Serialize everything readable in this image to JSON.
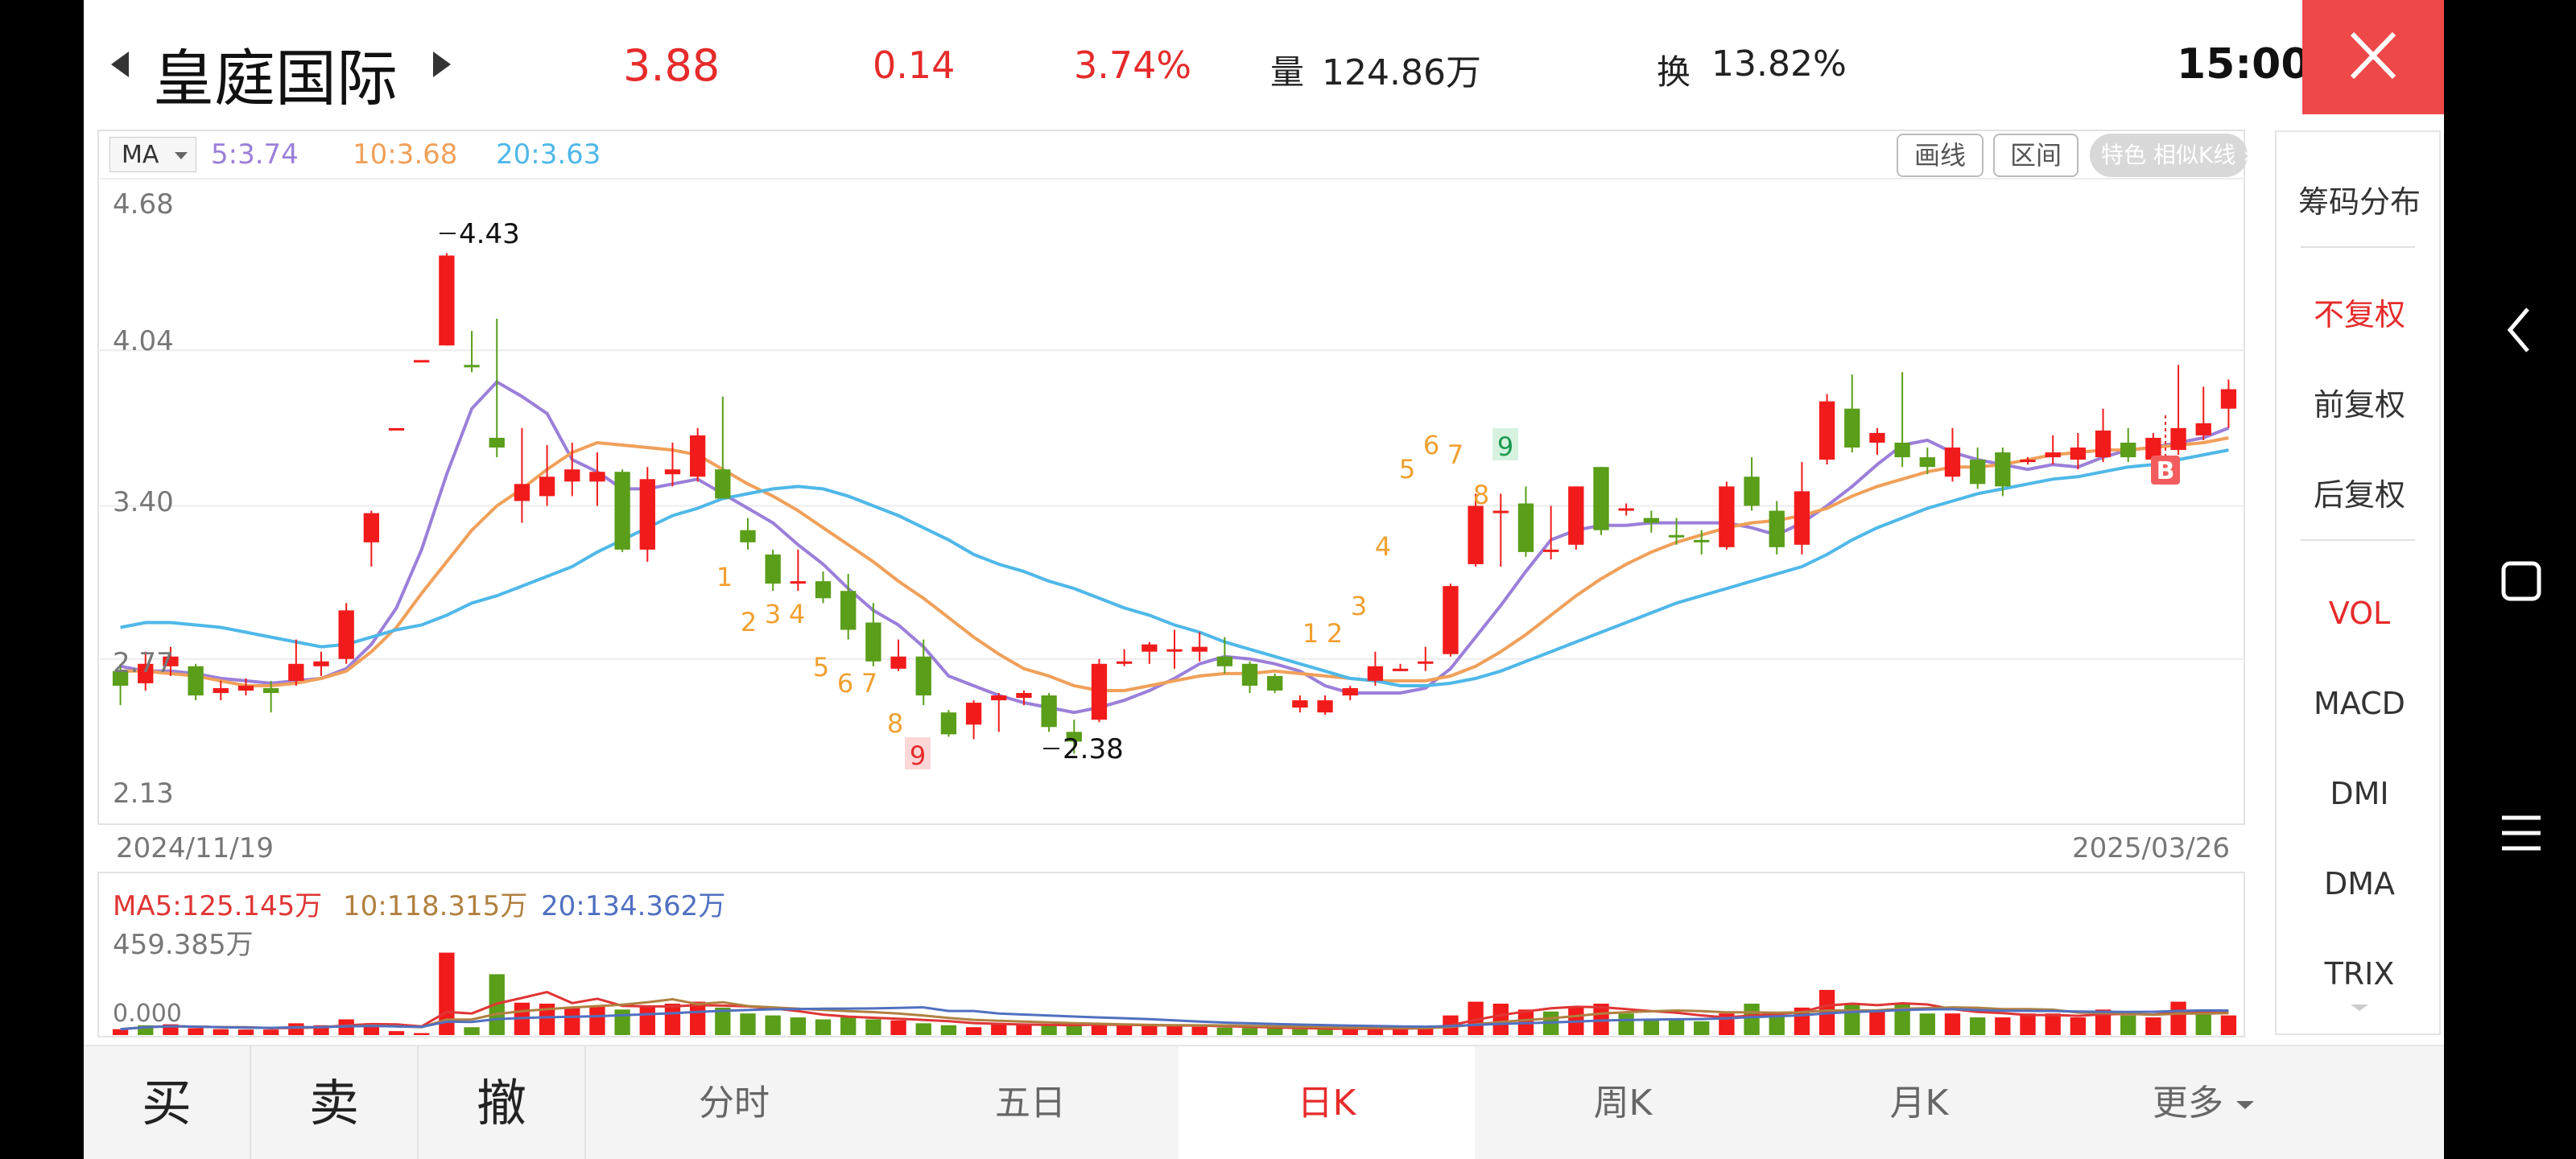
{
  "header": {
    "stock_name": "皇庭国际",
    "price": "3.88",
    "change": "0.14",
    "change_pct": "3.74%",
    "volume_label": "量",
    "volume_value": "124.86万",
    "turnover_label": "换",
    "turnover_value": "13.82%",
    "time": "15:00"
  },
  "toolbar": {
    "ma_toggle": "MA",
    "ma5": "5:3.74",
    "ma10": "10:3.68",
    "ma20": "20:3.63",
    "draw_line": "画线",
    "range": "区间",
    "special": "特色  相似K线 ›"
  },
  "price_axis": {
    "labels": [
      "4.68",
      "4.04",
      "3.40",
      "2.77",
      "2.13"
    ],
    "start_date": "2024/11/19",
    "end_date": "2025/03/26",
    "high_label": "4.43",
    "low_label": "2.38"
  },
  "volume": {
    "ma5": "MA5:125.145万",
    "ma10": "10:118.315万",
    "ma20": "20:134.362万",
    "max_label": "459.385万",
    "zero_label": "0.000"
  },
  "signals": {
    "marker_b": "B",
    "seq_numbers": [
      "1",
      "2",
      "3",
      "4",
      "5",
      "6",
      "7",
      "8",
      "9",
      "1",
      "2",
      "3",
      "4",
      "5",
      "6",
      "7",
      "8",
      "9"
    ]
  },
  "sidebar": {
    "items": [
      "筹码分布",
      "不复权",
      "前复权",
      "后复权",
      "VOL",
      "MACD",
      "DMI",
      "DMA",
      "TRIX"
    ]
  },
  "bottom_nav": {
    "buy": "买",
    "sell": "卖",
    "cancel": "撤",
    "tabs": [
      "分时",
      "五日",
      "日K",
      "周K",
      "月K",
      "更多"
    ]
  },
  "colors": {
    "up": "#f21b1b",
    "down": "#5a9e1a",
    "ma5": "#9b7fd9",
    "ma10": "#f0a05a",
    "ma20": "#4fb8e8",
    "accent": "#e62b2b"
  },
  "chart_data": {
    "type": "candlestick",
    "ylim": [
      2.13,
      4.68
    ],
    "candles": [
      [
        2.72,
        2.66,
        2.75,
        2.58
      ],
      [
        2.67,
        2.75,
        2.8,
        2.64
      ],
      [
        2.74,
        2.78,
        2.82,
        2.7
      ],
      [
        2.74,
        2.62,
        2.75,
        2.6
      ],
      [
        2.63,
        2.65,
        2.68,
        2.6
      ],
      [
        2.64,
        2.66,
        2.69,
        2.62
      ],
      [
        2.65,
        2.63,
        2.68,
        2.55
      ],
      [
        2.68,
        2.75,
        2.85,
        2.66
      ],
      [
        2.74,
        2.76,
        2.8,
        2.7
      ],
      [
        2.77,
        2.97,
        3.0,
        2.75
      ],
      [
        3.25,
        3.37,
        3.38,
        3.15
      ],
      [
        3.72,
        3.72,
        3.72,
        3.72
      ],
      [
        4.0,
        4.0,
        4.0,
        4.0
      ],
      [
        4.06,
        4.43,
        4.44,
        4.06
      ],
      [
        3.98,
        3.97,
        4.12,
        3.95
      ],
      [
        3.68,
        3.64,
        4.17,
        3.6
      ],
      [
        3.42,
        3.49,
        3.72,
        3.33
      ],
      [
        3.44,
        3.52,
        3.65,
        3.4
      ],
      [
        3.5,
        3.55,
        3.66,
        3.44
      ],
      [
        3.5,
        3.54,
        3.62,
        3.4
      ],
      [
        3.54,
        3.22,
        3.55,
        3.21
      ],
      [
        3.22,
        3.51,
        3.56,
        3.17
      ],
      [
        3.53,
        3.55,
        3.66,
        3.48
      ],
      [
        3.52,
        3.69,
        3.72,
        3.5
      ],
      [
        3.55,
        3.43,
        3.85,
        3.43
      ],
      [
        3.3,
        3.25,
        3.35,
        3.22
      ],
      [
        3.2,
        3.08,
        3.22,
        3.05
      ],
      [
        3.08,
        3.09,
        3.22,
        3.05
      ],
      [
        3.09,
        3.02,
        3.13,
        3.0
      ],
      [
        3.05,
        2.89,
        3.12,
        2.85
      ],
      [
        2.92,
        2.76,
        3.0,
        2.74
      ],
      [
        2.73,
        2.78,
        2.85,
        2.72
      ],
      [
        2.78,
        2.62,
        2.85,
        2.58
      ],
      [
        2.55,
        2.46,
        2.56,
        2.45
      ],
      [
        2.5,
        2.59,
        2.6,
        2.44
      ],
      [
        2.6,
        2.62,
        2.63,
        2.47
      ],
      [
        2.61,
        2.63,
        2.64,
        2.58
      ],
      [
        2.62,
        2.49,
        2.63,
        2.47
      ],
      [
        2.47,
        2.43,
        2.52,
        2.38
      ],
      [
        2.52,
        2.75,
        2.77,
        2.51
      ],
      [
        2.75,
        2.76,
        2.81,
        2.74
      ],
      [
        2.8,
        2.83,
        2.84,
        2.75
      ],
      [
        2.8,
        2.81,
        2.89,
        2.73
      ],
      [
        2.8,
        2.82,
        2.88,
        2.76
      ],
      [
        2.78,
        2.74,
        2.86,
        2.71
      ],
      [
        2.75,
        2.66,
        2.76,
        2.63
      ],
      [
        2.7,
        2.64,
        2.71,
        2.63
      ],
      [
        2.57,
        2.6,
        2.62,
        2.55
      ],
      [
        2.55,
        2.6,
        2.62,
        2.54
      ],
      [
        2.62,
        2.65,
        2.66,
        2.6
      ],
      [
        2.68,
        2.74,
        2.8,
        2.66
      ],
      [
        2.73,
        2.73,
        2.75,
        2.72
      ],
      [
        2.76,
        2.76,
        2.82,
        2.72
      ],
      [
        2.79,
        3.07,
        3.08,
        2.78
      ],
      [
        3.16,
        3.4,
        3.45,
        3.15
      ],
      [
        3.38,
        3.38,
        3.45,
        3.15
      ],
      [
        3.41,
        3.21,
        3.48,
        3.19
      ],
      [
        3.22,
        3.22,
        3.4,
        3.18
      ],
      [
        3.24,
        3.48,
        3.48,
        3.22
      ],
      [
        3.56,
        3.3,
        3.56,
        3.28
      ],
      [
        3.39,
        3.39,
        3.41,
        3.36
      ],
      [
        3.35,
        3.33,
        3.38,
        3.29
      ],
      [
        3.28,
        3.27,
        3.35,
        3.24
      ],
      [
        3.26,
        3.25,
        3.3,
        3.2
      ],
      [
        3.23,
        3.48,
        3.5,
        3.22
      ],
      [
        3.52,
        3.4,
        3.6,
        3.38
      ],
      [
        3.38,
        3.23,
        3.42,
        3.2
      ],
      [
        3.24,
        3.46,
        3.58,
        3.2
      ],
      [
        3.59,
        3.83,
        3.86,
        3.57
      ],
      [
        3.8,
        3.64,
        3.94,
        3.62
      ],
      [
        3.66,
        3.7,
        3.72,
        3.61
      ],
      [
        3.66,
        3.6,
        3.95,
        3.56
      ],
      [
        3.6,
        3.56,
        3.64,
        3.53
      ],
      [
        3.52,
        3.64,
        3.72,
        3.5
      ],
      [
        3.59,
        3.49,
        3.64,
        3.47
      ],
      [
        3.62,
        3.48,
        3.64,
        3.44
      ],
      [
        3.59,
        3.59,
        3.6,
        3.57
      ],
      [
        3.6,
        3.62,
        3.69,
        3.57
      ],
      [
        3.59,
        3.64,
        3.7,
        3.55
      ],
      [
        3.6,
        3.71,
        3.8,
        3.58
      ],
      [
        3.66,
        3.6,
        3.72,
        3.58
      ],
      [
        3.59,
        3.68,
        3.7,
        3.52
      ],
      [
        3.63,
        3.72,
        3.98,
        3.61
      ],
      [
        3.69,
        3.74,
        3.89,
        3.67
      ],
      [
        3.8,
        3.88,
        3.92,
        3.72
      ]
    ],
    "volumes": [
      [
        30,
        1
      ],
      [
        50,
        0
      ],
      [
        55,
        1
      ],
      [
        35,
        1
      ],
      [
        30,
        1
      ],
      [
        28,
        1
      ],
      [
        28,
        1
      ],
      [
        60,
        1
      ],
      [
        50,
        1
      ],
      [
        80,
        1
      ],
      [
        60,
        1
      ],
      [
        20,
        1
      ],
      [
        10,
        1
      ],
      [
        420,
        1
      ],
      [
        40,
        0
      ],
      [
        310,
        0
      ],
      [
        165,
        1
      ],
      [
        160,
        1
      ],
      [
        140,
        1
      ],
      [
        150,
        1
      ],
      [
        130,
        0
      ],
      [
        150,
        1
      ],
      [
        160,
        1
      ],
      [
        170,
        1
      ],
      [
        140,
        0
      ],
      [
        110,
        0
      ],
      [
        100,
        0
      ],
      [
        90,
        0
      ],
      [
        80,
        0
      ],
      [
        90,
        0
      ],
      [
        80,
        0
      ],
      [
        75,
        1
      ],
      [
        60,
        0
      ],
      [
        50,
        0
      ],
      [
        40,
        1
      ],
      [
        60,
        1
      ],
      [
        58,
        1
      ],
      [
        50,
        0
      ],
      [
        45,
        0
      ],
      [
        55,
        1
      ],
      [
        50,
        1
      ],
      [
        50,
        1
      ],
      [
        45,
        1
      ],
      [
        42,
        1
      ],
      [
        38,
        0
      ],
      [
        36,
        0
      ],
      [
        34,
        0
      ],
      [
        30,
        0
      ],
      [
        28,
        0
      ],
      [
        30,
        1
      ],
      [
        40,
        1
      ],
      [
        36,
        1
      ],
      [
        40,
        1
      ],
      [
        100,
        1
      ],
      [
        170,
        1
      ],
      [
        160,
        1
      ],
      [
        130,
        1
      ],
      [
        120,
        0
      ],
      [
        140,
        1
      ],
      [
        160,
        1
      ],
      [
        110,
        0
      ],
      [
        80,
        0
      ],
      [
        80,
        0
      ],
      [
        70,
        0
      ],
      [
        110,
        1
      ],
      [
        160,
        0
      ],
      [
        110,
        0
      ],
      [
        140,
        1
      ],
      [
        230,
        1
      ],
      [
        160,
        0
      ],
      [
        120,
        1
      ],
      [
        160,
        0
      ],
      [
        110,
        0
      ],
      [
        110,
        1
      ],
      [
        90,
        0
      ],
      [
        90,
        1
      ],
      [
        110,
        1
      ],
      [
        110,
        1
      ],
      [
        90,
        1
      ],
      [
        130,
        1
      ],
      [
        100,
        0
      ],
      [
        90,
        1
      ],
      [
        170,
        1
      ],
      [
        120,
        0
      ],
      [
        100,
        1
      ]
    ],
    "ma_series": [
      {
        "name": "5",
        "values": [
          2.74,
          2.72,
          2.72,
          2.71,
          2.69,
          2.68,
          2.67,
          2.68,
          2.69,
          2.73,
          2.83,
          2.98,
          3.22,
          3.53,
          3.8,
          3.91,
          3.85,
          3.78,
          3.59,
          3.54,
          3.47,
          3.47,
          3.49,
          3.51,
          3.45,
          3.39,
          3.33,
          3.24,
          3.16,
          3.06,
          2.97,
          2.91,
          2.82,
          2.7,
          2.66,
          2.62,
          2.59,
          2.57,
          2.55,
          2.57,
          2.6,
          2.64,
          2.69,
          2.75,
          2.78,
          2.77,
          2.75,
          2.72,
          2.66,
          2.63,
          2.63,
          2.63,
          2.65,
          2.73,
          2.86,
          2.99,
          3.13,
          3.26,
          3.3,
          3.32,
          3.32,
          3.33,
          3.33,
          3.33,
          3.33,
          3.31,
          3.28,
          3.33,
          3.4,
          3.48,
          3.57,
          3.65,
          3.67,
          3.62,
          3.59,
          3.57,
          3.55,
          3.57,
          3.56,
          3.6,
          3.63,
          3.64,
          3.66,
          3.68,
          3.72
        ]
      },
      {
        "name": "10",
        "values": [
          2.72,
          2.72,
          2.71,
          2.7,
          2.68,
          2.66,
          2.66,
          2.67,
          2.69,
          2.72,
          2.8,
          2.9,
          3.04,
          3.17,
          3.3,
          3.4,
          3.47,
          3.55,
          3.62,
          3.66,
          3.65,
          3.64,
          3.63,
          3.61,
          3.55,
          3.49,
          3.44,
          3.38,
          3.31,
          3.24,
          3.17,
          3.09,
          3.02,
          2.94,
          2.86,
          2.79,
          2.73,
          2.7,
          2.66,
          2.64,
          2.64,
          2.66,
          2.68,
          2.7,
          2.71,
          2.71,
          2.72,
          2.71,
          2.7,
          2.69,
          2.68,
          2.68,
          2.68,
          2.7,
          2.74,
          2.8,
          2.87,
          2.95,
          3.03,
          3.1,
          3.16,
          3.21,
          3.25,
          3.28,
          3.31,
          3.33,
          3.34,
          3.36,
          3.39,
          3.44,
          3.48,
          3.51,
          3.54,
          3.56,
          3.56,
          3.57,
          3.59,
          3.61,
          3.62,
          3.63,
          3.63,
          3.64,
          3.65,
          3.66,
          3.68
        ]
      },
      {
        "name": "20",
        "values": [
          2.9,
          2.92,
          2.92,
          2.91,
          2.9,
          2.88,
          2.86,
          2.84,
          2.82,
          2.83,
          2.86,
          2.89,
          2.91,
          2.95,
          3.0,
          3.03,
          3.07,
          3.11,
          3.15,
          3.21,
          3.26,
          3.31,
          3.36,
          3.39,
          3.43,
          3.45,
          3.47,
          3.48,
          3.47,
          3.44,
          3.4,
          3.36,
          3.31,
          3.26,
          3.2,
          3.16,
          3.13,
          3.09,
          3.06,
          3.02,
          2.98,
          2.95,
          2.91,
          2.88,
          2.84,
          2.81,
          2.78,
          2.75,
          2.72,
          2.69,
          2.68,
          2.66,
          2.66,
          2.67,
          2.69,
          2.72,
          2.76,
          2.8,
          2.84,
          2.88,
          2.92,
          2.96,
          3.0,
          3.03,
          3.06,
          3.09,
          3.12,
          3.15,
          3.2,
          3.26,
          3.31,
          3.35,
          3.39,
          3.42,
          3.45,
          3.47,
          3.49,
          3.51,
          3.52,
          3.54,
          3.56,
          3.57,
          3.59,
          3.61,
          3.63
        ]
      }
    ]
  }
}
